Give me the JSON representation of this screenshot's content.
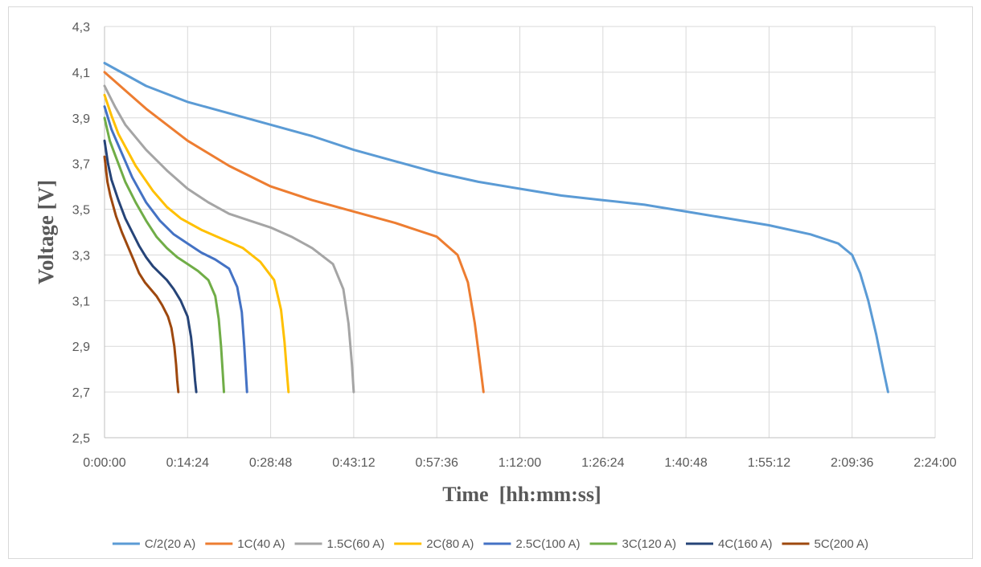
{
  "chart_data": {
    "type": "line",
    "xlabel": "Time  [hh:mm:ss]",
    "ylabel": "Voltage  [V]",
    "x_unit": "hh:mm:ss",
    "xlim": [
      "0:00:00",
      "2:24:00"
    ],
    "ylim": [
      2.5,
      4.3
    ],
    "x_ticks": [
      "0:00:00",
      "0:14:24",
      "0:28:48",
      "0:43:12",
      "0:57:36",
      "1:12:00",
      "1:26:24",
      "1:40:48",
      "1:55:12",
      "2:09:36",
      "2:24:00"
    ],
    "y_ticks": [
      "2,5",
      "2,7",
      "2,9",
      "3,1",
      "3,3",
      "3,5",
      "3,7",
      "3,9",
      "4,1",
      "4,3"
    ],
    "grid": true,
    "legend_position": "bottom",
    "series": [
      {
        "name": "C/2(20 A)",
        "color": "#5b9bd5",
        "x": [
          "0:00:00",
          "0:07:12",
          "0:14:24",
          "0:21:36",
          "0:28:48",
          "0:36:00",
          "0:43:12",
          "0:50:24",
          "0:57:36",
          "1:04:48",
          "1:12:00",
          "1:19:12",
          "1:26:24",
          "1:33:36",
          "1:40:48",
          "1:48:00",
          "1:55:12",
          "2:02:24",
          "2:07:12",
          "2:09:36",
          "2:11:00",
          "2:12:24",
          "2:13:48",
          "2:15:00",
          "2:15:50"
        ],
        "y": [
          4.14,
          4.04,
          3.97,
          3.92,
          3.87,
          3.82,
          3.76,
          3.71,
          3.66,
          3.62,
          3.59,
          3.56,
          3.54,
          3.52,
          3.49,
          3.46,
          3.43,
          3.39,
          3.35,
          3.3,
          3.22,
          3.1,
          2.95,
          2.8,
          2.7
        ]
      },
      {
        "name": "1C(40 A)",
        "color": "#ed7d31",
        "x": [
          "0:00:00",
          "0:03:36",
          "0:07:12",
          "0:14:24",
          "0:21:36",
          "0:28:48",
          "0:36:00",
          "0:43:12",
          "0:50:24",
          "0:57:36",
          "1:01:12",
          "1:03:00",
          "1:04:12",
          "1:04:48",
          "1:05:24",
          "1:05:42"
        ],
        "y": [
          4.1,
          4.02,
          3.94,
          3.8,
          3.69,
          3.6,
          3.54,
          3.49,
          3.44,
          3.38,
          3.3,
          3.18,
          3.0,
          2.88,
          2.76,
          2.7
        ]
      },
      {
        "name": "1.5C(60 A)",
        "color": "#a5a5a5",
        "x": [
          "0:00:00",
          "0:01:48",
          "0:03:36",
          "0:07:12",
          "0:10:48",
          "0:14:24",
          "0:18:00",
          "0:21:36",
          "0:25:12",
          "0:28:48",
          "0:32:24",
          "0:36:00",
          "0:39:36",
          "0:41:24",
          "0:42:18",
          "0:42:54",
          "0:43:12"
        ],
        "y": [
          4.04,
          3.95,
          3.87,
          3.76,
          3.67,
          3.59,
          3.53,
          3.48,
          3.45,
          3.42,
          3.38,
          3.33,
          3.26,
          3.15,
          3.0,
          2.82,
          2.7
        ]
      },
      {
        "name": "2C(80 A)",
        "color": "#ffc000",
        "x": [
          "0:00:00",
          "0:01:12",
          "0:02:24",
          "0:05:24",
          "0:08:24",
          "0:10:48",
          "0:13:12",
          "0:16:48",
          "0:20:24",
          "0:24:00",
          "0:27:00",
          "0:29:24",
          "0:30:36",
          "0:31:12",
          "0:31:36",
          "0:31:54"
        ],
        "y": [
          4.0,
          3.91,
          3.83,
          3.69,
          3.58,
          3.51,
          3.46,
          3.41,
          3.37,
          3.33,
          3.27,
          3.19,
          3.06,
          2.92,
          2.79,
          2.7
        ]
      },
      {
        "name": "2.5C(100 A)",
        "color": "#4472c4",
        "x": [
          "0:00:00",
          "0:01:12",
          "0:02:24",
          "0:04:48",
          "0:07:12",
          "0:09:36",
          "0:12:00",
          "0:14:24",
          "0:16:48",
          "0:19:12",
          "0:21:36",
          "0:23:00",
          "0:23:48",
          "0:24:12",
          "0:24:30",
          "0:24:42"
        ],
        "y": [
          3.95,
          3.85,
          3.78,
          3.64,
          3.53,
          3.45,
          3.39,
          3.35,
          3.31,
          3.28,
          3.24,
          3.16,
          3.05,
          2.91,
          2.78,
          2.7
        ]
      },
      {
        "name": "3C(120 A)",
        "color": "#70ad47",
        "x": [
          "0:00:00",
          "0:00:54",
          "0:01:48",
          "0:03:36",
          "0:05:24",
          "0:07:12",
          "0:09:00",
          "0:10:48",
          "0:12:36",
          "0:14:24",
          "0:16:12",
          "0:18:00",
          "0:19:12",
          "0:19:48",
          "0:20:12",
          "0:20:30",
          "0:20:42"
        ],
        "y": [
          3.9,
          3.8,
          3.74,
          3.62,
          3.53,
          3.45,
          3.38,
          3.33,
          3.29,
          3.26,
          3.23,
          3.19,
          3.12,
          3.02,
          2.9,
          2.78,
          2.7
        ]
      },
      {
        "name": "4C(160 A)",
        "color": "#264478",
        "x": [
          "0:00:00",
          "0:00:36",
          "0:01:12",
          "0:02:24",
          "0:03:36",
          "0:04:48",
          "0:06:00",
          "0:07:12",
          "0:08:24",
          "0:09:36",
          "0:10:48",
          "0:12:00",
          "0:13:12",
          "0:14:24",
          "0:15:00",
          "0:15:24",
          "0:15:42",
          "0:15:54"
        ],
        "y": [
          3.8,
          3.7,
          3.63,
          3.54,
          3.46,
          3.4,
          3.34,
          3.29,
          3.25,
          3.22,
          3.19,
          3.15,
          3.1,
          3.03,
          2.94,
          2.84,
          2.75,
          2.7
        ]
      },
      {
        "name": "5C(200 A)",
        "color": "#9e480e",
        "x": [
          "0:00:00",
          "0:00:30",
          "0:01:00",
          "0:02:00",
          "0:03:00",
          "0:04:00",
          "0:05:00",
          "0:06:00",
          "0:07:00",
          "0:08:00",
          "0:09:00",
          "0:10:00",
          "0:11:00",
          "0:11:36",
          "0:12:06",
          "0:12:24",
          "0:12:36",
          "0:12:48"
        ],
        "y": [
          3.73,
          3.62,
          3.56,
          3.47,
          3.4,
          3.34,
          3.28,
          3.22,
          3.18,
          3.15,
          3.12,
          3.08,
          3.03,
          2.98,
          2.9,
          2.82,
          2.75,
          2.7
        ]
      }
    ]
  }
}
